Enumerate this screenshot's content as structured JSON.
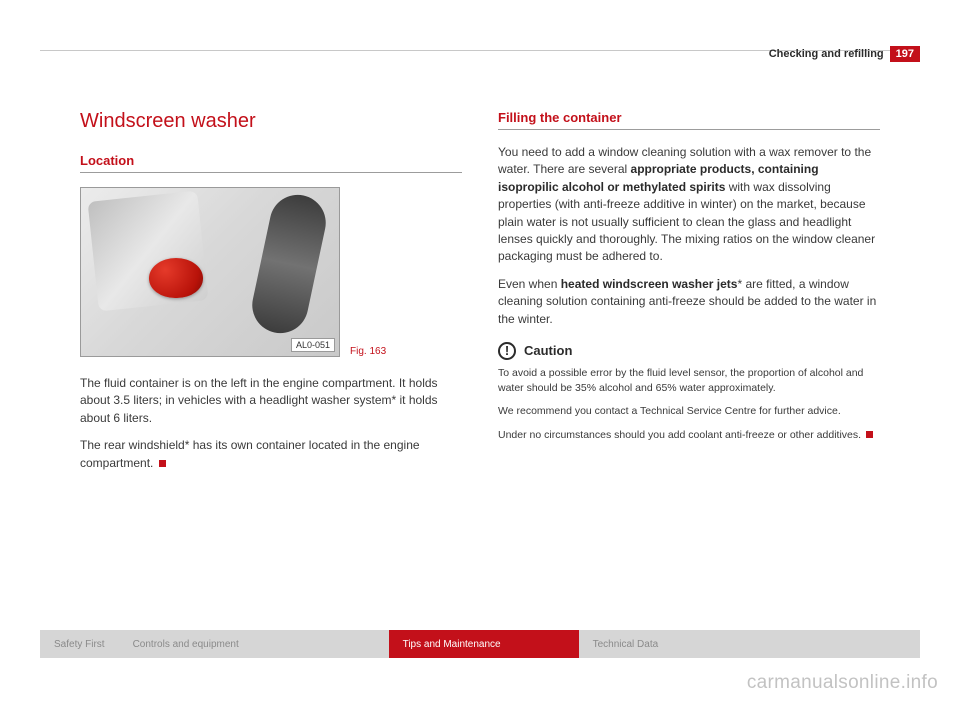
{
  "header": {
    "section_title": "Checking and refilling",
    "page_number": "197",
    "accent_color": "#c3101a"
  },
  "left": {
    "h1": "Windscreen washer",
    "h2": "Location",
    "figure": {
      "tag": "AL0-051",
      "label": "Fig. 163",
      "cap_color": "#c3101a"
    },
    "para1": "The fluid container is on the left in the engine compartment. It holds about 3.5 liters; in vehicles with a headlight washer system* it holds about 6 liters.",
    "para2_prefix": "The rear windshield* has its own container located in the engine compartment."
  },
  "right": {
    "h2": "Filling the container",
    "para1_lead": "You need to add a window cleaning solution with a wax remover to the water. There are several ",
    "para1_bold1": "appropriate products, containing isopropilic alcohol or methylated spirits",
    "para1_tail": " with wax dissolving properties (with anti-freeze additive in winter) on the market, because plain water is not usually sufficient to clean the glass and headlight lenses quickly and thoroughly. The mixing ratios on the window cleaner packaging must be adhered to.",
    "para2_lead": "Even when ",
    "para2_bold": "heated windscreen washer jets",
    "para2_tail": "* are fitted, a window cleaning solution containing anti-freeze should be added to the water in the winter.",
    "caution_label": "Caution",
    "caution_p1": "To avoid a possible error by the fluid level sensor, the proportion of alcohol and water should be 35% alcohol and 65% water approximately.",
    "caution_p2": "We recommend you contact a Technical Service Centre for further advice.",
    "caution_p3": "Under no circumstances should you add coolant anti-freeze or other additives."
  },
  "tabs": {
    "t1": "Safety First",
    "t2": "Controls and equipment",
    "t3": "Tips and Maintenance",
    "t4": "Technical Data"
  },
  "watermark": "carmanualsonline.info"
}
